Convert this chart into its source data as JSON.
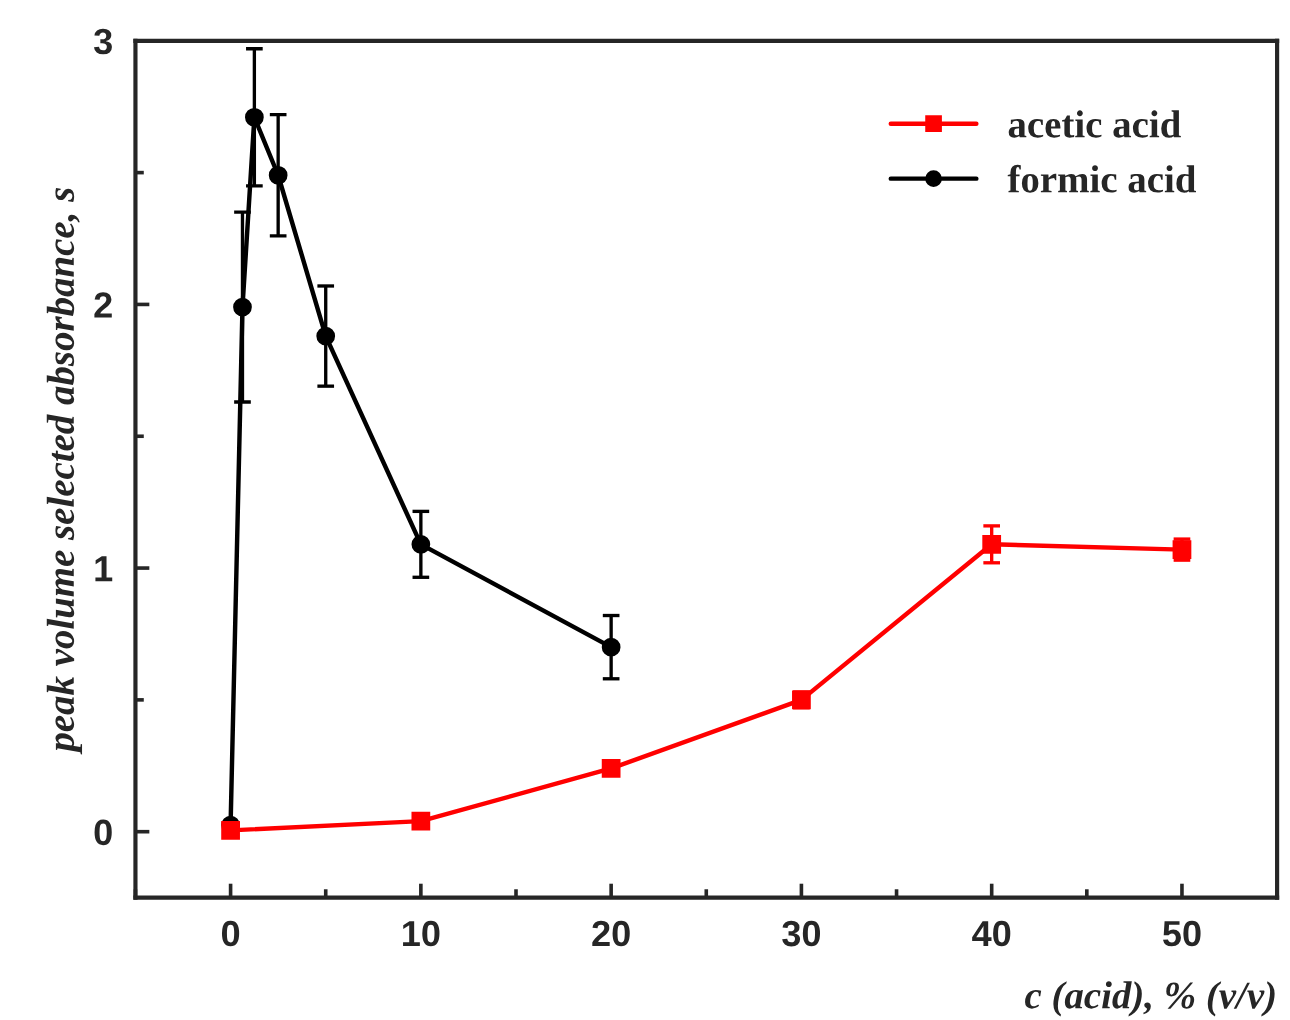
{
  "chart_data": {
    "type": "line",
    "xlabel": "c (acid), % (v/v)",
    "ylabel": "peak volume selected absorbance, s",
    "xlim": [
      -5,
      55
    ],
    "xticks": [
      0,
      10,
      20,
      30,
      40,
      50
    ],
    "ylim": [
      -0.25,
      3
    ],
    "yticks": [
      0,
      1,
      2,
      3
    ],
    "grid": false,
    "legend": "top right",
    "line_style": "solid",
    "series": [
      {
        "name": "acetic acid",
        "color": "#ff0000",
        "marker": "square",
        "x": [
          0,
          10,
          20,
          30,
          40,
          50
        ],
        "values": [
          0.005,
          0.04,
          0.24,
          0.5,
          1.09,
          1.07
        ],
        "errors": [
          null,
          0.01,
          0.02,
          0.03,
          0.07,
          0.04
        ]
      },
      {
        "name": "formic acid",
        "color": "#000000",
        "marker": "circle",
        "x": [
          0,
          0.625,
          1.25,
          2.5,
          5,
          10,
          20
        ],
        "values": [
          0.025,
          1.99,
          2.71,
          2.49,
          1.88,
          1.09,
          0.7
        ],
        "errors": [
          null,
          0.36,
          0.26,
          0.23,
          0.19,
          0.125,
          0.12
        ]
      }
    ]
  }
}
